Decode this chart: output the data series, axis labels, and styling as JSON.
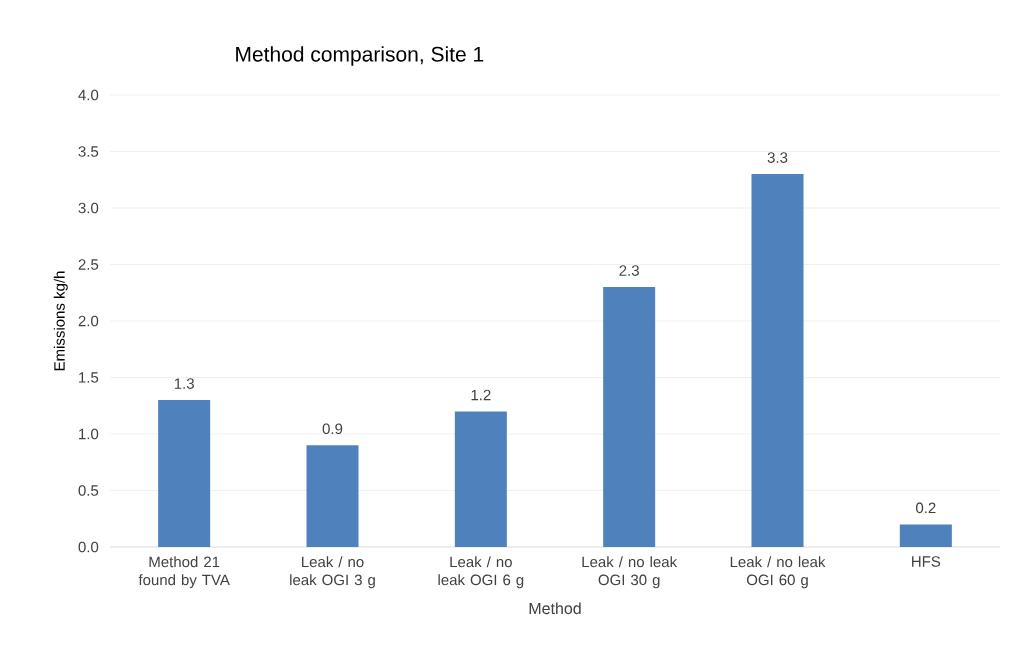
{
  "chart_data": {
    "type": "bar",
    "title": "Method comparison, Site 1",
    "xlabel": "Method",
    "ylabel": "Emissions kg/h",
    "categories": [
      "Method 21 found by TVA",
      "Leak / no leak OGI 3 g",
      "Leak / no leak OGI 6 g",
      "Leak / no leak OGI 30 g",
      "Leak / no leak OGI 60 g",
      "HFS"
    ],
    "values": [
      1.3,
      0.9,
      1.2,
      2.3,
      3.3,
      0.2
    ],
    "color": "#4f81bd",
    "ylim": [
      0,
      4
    ],
    "yticks": [
      {
        "value": 0,
        "label": "0.0"
      },
      {
        "value": 0.5,
        "label": "0.5"
      },
      {
        "value": 1,
        "label": "1.0"
      },
      {
        "value": 1.5,
        "label": "1.5"
      },
      {
        "value": 2,
        "label": "2.0"
      },
      {
        "value": 2.5,
        "label": "2.5"
      },
      {
        "value": 3,
        "label": "3.0"
      },
      {
        "value": 3.5,
        "label": "3.5"
      },
      {
        "value": 4,
        "label": "4.0"
      }
    ],
    "data_labels": true,
    "grid": "y"
  }
}
